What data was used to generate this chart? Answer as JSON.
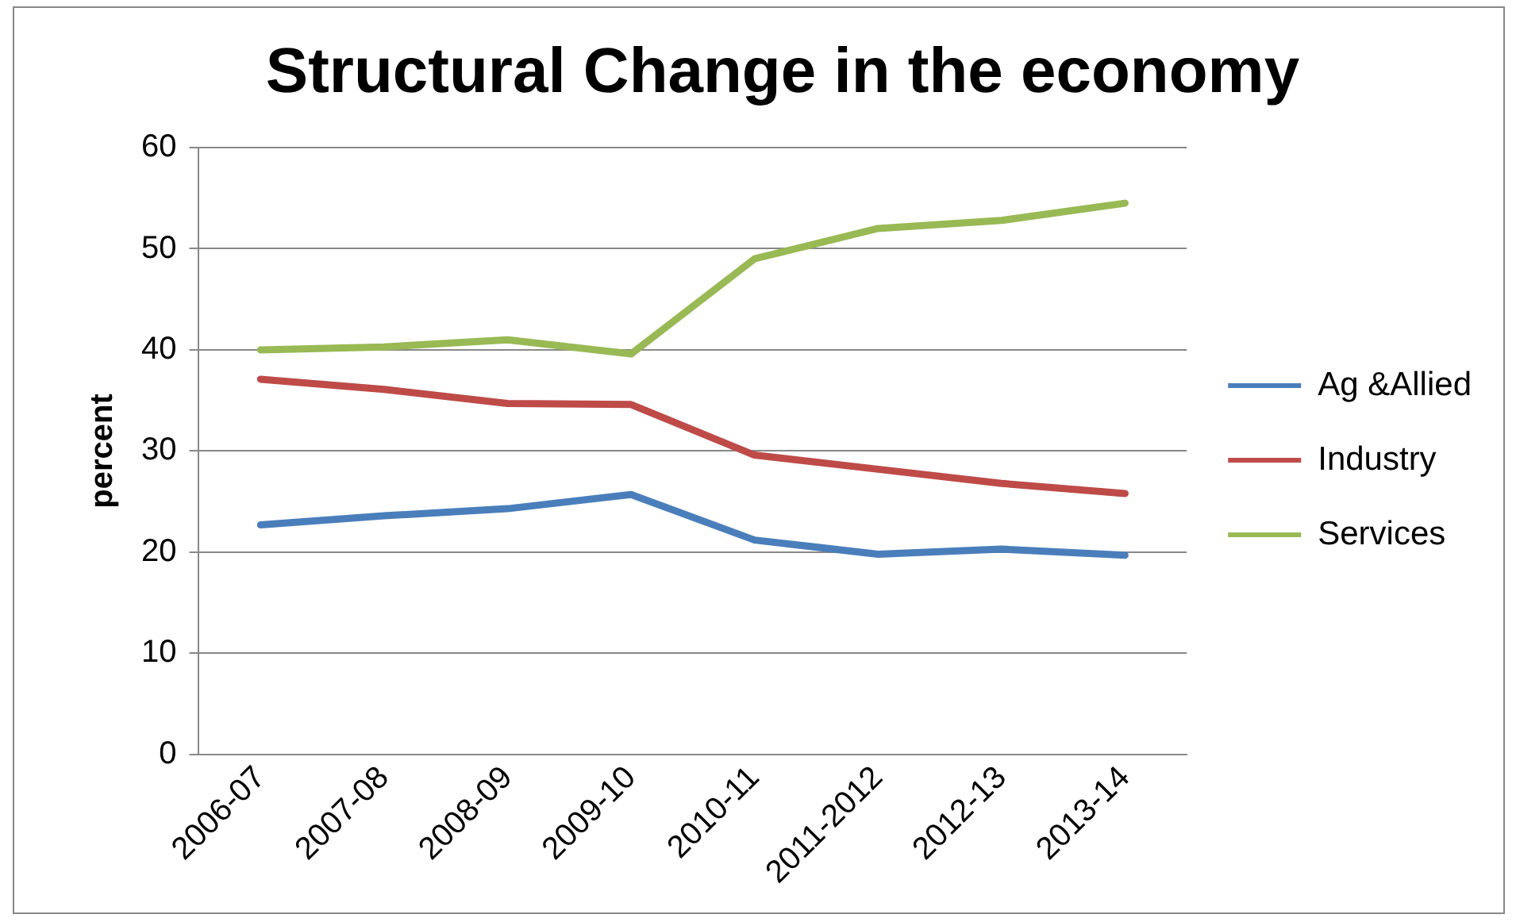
{
  "chart_data": {
    "type": "line",
    "title": "Structural Change in the economy",
    "ylabel": "percent",
    "categories": [
      "2006-07",
      "2007-08",
      "2008-09",
      "2009-10",
      "2010-11",
      "2011-2012",
      "2012-13",
      "2013-14"
    ],
    "series": [
      {
        "name": "Ag &Allied",
        "color": "#4a7ebb",
        "values": [
          22.7,
          23.6,
          24.3,
          25.7,
          21.2,
          19.8,
          20.3,
          19.7
        ]
      },
      {
        "name": "Industry",
        "color": "#be4b48",
        "values": [
          37.1,
          36.1,
          34.7,
          34.6,
          29.6,
          28.2,
          26.8,
          25.8
        ]
      },
      {
        "name": "Services",
        "color": "#98b954",
        "values": [
          40,
          40.3,
          41,
          39.6,
          49,
          52,
          52.8,
          54.5
        ]
      }
    ],
    "ylim": [
      0,
      60
    ],
    "yticks": [
      0,
      10,
      20,
      30,
      40,
      50,
      60
    ],
    "grid": "y",
    "legend": "right",
    "marker": "none",
    "line_style": "solid"
  }
}
